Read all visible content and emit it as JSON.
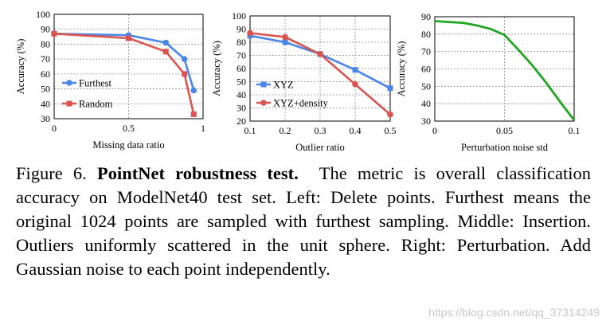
{
  "colors": {
    "blue": "#4a86e8",
    "red": "#d9534f",
    "green": "#21a721",
    "grid": "#8c8c8c"
  },
  "chart_data": [
    {
      "type": "line",
      "title": "",
      "xlabel": "Missing data ratio",
      "ylabel": "Accuracy (%)",
      "xlim": [
        0,
        1
      ],
      "ylim": [
        30,
        100
      ],
      "xticks": [
        0,
        0.5,
        1
      ],
      "xtick_labels": [
        "0",
        "0.5",
        "1"
      ],
      "yticks": [
        30,
        40,
        50,
        60,
        70,
        80,
        90,
        100
      ],
      "ytick_labels": [
        "30",
        "40",
        "50",
        "60",
        "70",
        "80",
        "90",
        "100"
      ],
      "legend_position": "bottom-left",
      "series": [
        {
          "name": "Furthest",
          "color": "#4a86e8",
          "marker": "circle",
          "x": [
            0,
            0.5,
            0.75,
            0.875,
            0.9375
          ],
          "y": [
            87,
            86,
            81,
            70,
            49
          ]
        },
        {
          "name": "Random",
          "color": "#d9534f",
          "marker": "square",
          "x": [
            0,
            0.5,
            0.75,
            0.875,
            0.9375
          ],
          "y": [
            87,
            84,
            75,
            60,
            33
          ]
        }
      ]
    },
    {
      "type": "line",
      "title": "",
      "xlabel": "Outlier ratio",
      "ylabel": "Accuracy (%)",
      "xlim": [
        0.1,
        0.5
      ],
      "ylim": [
        20,
        100
      ],
      "xticks": [
        0.1,
        0.2,
        0.3,
        0.4,
        0.5
      ],
      "xtick_labels": [
        "0.1",
        "0.2",
        "0.3",
        "0.4",
        "0.5"
      ],
      "yticks": [
        20,
        30,
        40,
        50,
        60,
        70,
        80,
        90,
        100
      ],
      "ytick_labels": [
        "20",
        "30",
        "40",
        "50",
        "60",
        "70",
        "80",
        "90",
        "100"
      ],
      "legend_position": "bottom-left",
      "series": [
        {
          "name": "XYZ",
          "color": "#4a86e8",
          "marker": "square",
          "x": [
            0.1,
            0.2,
            0.3,
            0.4,
            0.5
          ],
          "y": [
            85,
            80,
            71,
            59,
            45
          ]
        },
        {
          "name": "XYZ+density",
          "color": "#d9534f",
          "marker": "circle",
          "x": [
            0.1,
            0.2,
            0.3,
            0.4,
            0.5
          ],
          "y": [
            87,
            84,
            71,
            48,
            25
          ]
        }
      ]
    },
    {
      "type": "line",
      "title": "",
      "xlabel": "Perturbation noise std",
      "ylabel": "Accuracy (%)",
      "xlim": [
        0,
        0.1
      ],
      "ylim": [
        30,
        90
      ],
      "xticks": [
        0,
        0.05,
        0.1
      ],
      "xtick_labels": [
        "0",
        "0.05",
        "0.1"
      ],
      "yticks": [
        30,
        40,
        50,
        60,
        70,
        80,
        90
      ],
      "ytick_labels": [
        "30",
        "40",
        "50",
        "60",
        "70",
        "80",
        "90"
      ],
      "series": [
        {
          "name": "Gaussian noise",
          "color": "#21a721",
          "marker": "none",
          "x": [
            0,
            0.01,
            0.02,
            0.03,
            0.04,
            0.05,
            0.06,
            0.07,
            0.08,
            0.09,
            0.1
          ],
          "y": [
            87.5,
            87,
            86.5,
            85,
            83,
            79.5,
            71,
            62,
            52,
            41,
            30.5
          ]
        }
      ]
    }
  ],
  "caption": {
    "figure_label": "Figure 6.",
    "bold_title": "PointNet robustness test.",
    "body": "The metric is overall classification accuracy on ModelNet40 test set. Left: Delete points. Furthest means the original 1024 points are sampled with furthest sampling. Middle: Insertion. Outliers uniformly scattered in the unit sphere. Right: Perturbation. Add Gaussian noise to each point independently."
  },
  "watermark": "https://blog.csdn.net/qq_37314249"
}
